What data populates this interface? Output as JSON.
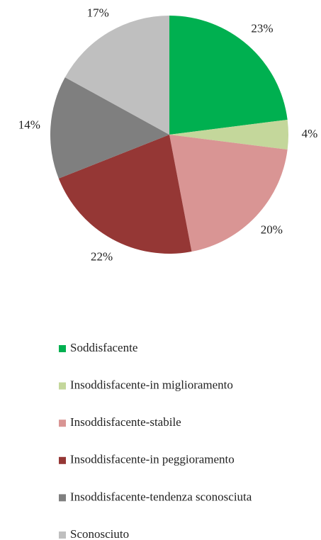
{
  "chart_data": {
    "type": "pie",
    "categories": [
      "Soddisfacente",
      "Insoddisfacente-in miglioramento",
      "Insoddisfacente-stabile",
      "Insoddisfacente-in peggioramento",
      "Insoddisfacente-tendenza sconosciuta",
      "Sconosciuto"
    ],
    "values": [
      23,
      4,
      20,
      22,
      14,
      17
    ],
    "value_labels": [
      "23%",
      "4%",
      "20%",
      "22%",
      "14%",
      "17%"
    ],
    "colors": [
      "#00b050",
      "#c4d79b",
      "#d99594",
      "#953735",
      "#7f7f7f",
      "#bfbfbf"
    ]
  }
}
